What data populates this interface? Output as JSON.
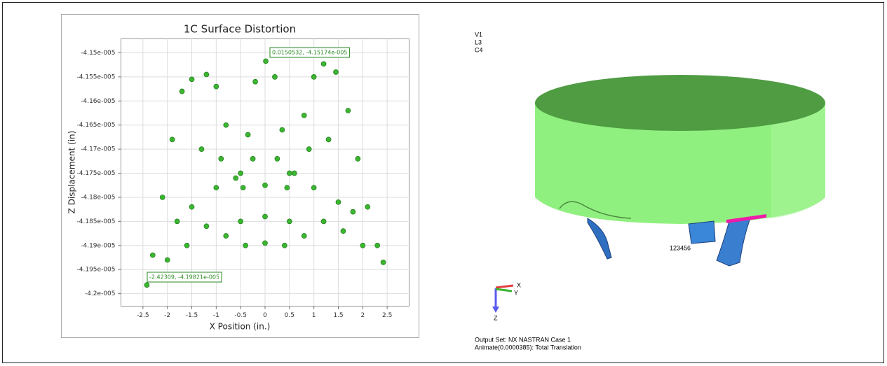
{
  "chart_data": {
    "type": "scatter",
    "title": "1C Surface Distortion",
    "x_label": "X Position (in.)",
    "y_label": "Z Displacement (in)",
    "color": "#3cb531",
    "grid": true,
    "x": [
      -2.42,
      -2.3,
      -2.1,
      -1.9,
      -1.7,
      -1.5,
      -1.2,
      -1.0,
      -0.8,
      -0.6,
      -0.45,
      -0.35,
      -0.2,
      0.015,
      0.2,
      0.35,
      0.45,
      0.6,
      0.8,
      1.0,
      1.2,
      1.45,
      1.7,
      1.9,
      2.1,
      2.3,
      2.42,
      -2.0,
      -1.6,
      -1.2,
      -0.8,
      -0.4,
      0,
      0.4,
      0.8,
      1.2,
      1.6,
      2.0,
      -1.0,
      -0.5,
      0,
      0.5,
      1.0,
      -1.5,
      1.5,
      0,
      -0.5,
      0.5,
      -1.8,
      -1.3,
      -0.9,
      0.9,
      1.3,
      1.8,
      -0.25,
      0.25
    ],
    "y": [
      -4.19821e-05,
      -4.192e-05,
      -4.18e-05,
      -4.168e-05,
      -4.158e-05,
      -4.1555e-05,
      -4.1545e-05,
      -4.157e-05,
      -4.165e-05,
      -4.176e-05,
      -4.178e-05,
      -4.167e-05,
      -4.156e-05,
      -4.15174e-05,
      -4.155e-05,
      -4.166e-05,
      -4.178e-05,
      -4.175e-05,
      -4.163e-05,
      -4.155e-05,
      -4.1523e-05,
      -4.154e-05,
      -4.162e-05,
      -4.172e-05,
      -4.182e-05,
      -4.19e-05,
      -4.1935e-05,
      -4.193e-05,
      -4.19e-05,
      -4.186e-05,
      -4.188e-05,
      -4.19e-05,
      -4.1895e-05,
      -4.19e-05,
      -4.188e-05,
      -4.185e-05,
      -4.187e-05,
      -4.19e-05,
      -4.178e-05,
      -4.175e-05,
      -4.1775e-05,
      -4.175e-05,
      -4.178e-05,
      -4.182e-05,
      -4.181e-05,
      -4.184e-05,
      -4.185e-05,
      -4.185e-05,
      -4.185e-05,
      -4.17e-05,
      -4.172e-05,
      -4.17e-05,
      -4.168e-05,
      -4.183e-05,
      -4.172e-05,
      -4.172e-05
    ],
    "xlim": [
      -2.95,
      2.95
    ],
    "ylim": [
      -4.2026e-05,
      -4.1471e-05
    ],
    "xticks": [
      -2.5,
      -2,
      -1.5,
      -1,
      -0.5,
      0,
      0.5,
      1,
      1.5,
      2,
      2.5
    ],
    "yticks": [
      {
        "value": -4.15e-05,
        "label": "-4.15e-005"
      },
      {
        "value": -4.155e-05,
        "label": "-4.155e-005"
      },
      {
        "value": -4.16e-05,
        "label": "-4.16e-005"
      },
      {
        "value": -4.165e-05,
        "label": "-4.165e-005"
      },
      {
        "value": -4.17e-05,
        "label": "-4.17e-005"
      },
      {
        "value": -4.175e-05,
        "label": "-4.175e-005"
      },
      {
        "value": -4.18e-05,
        "label": "-4.18e-005"
      },
      {
        "value": -4.185e-05,
        "label": "-4.185e-005"
      },
      {
        "value": -4.19e-05,
        "label": "-4.19e-005"
      },
      {
        "value": -4.195e-05,
        "label": "-4.195e-005"
      },
      {
        "value": -4.2e-05,
        "label": "-4.2e-005"
      }
    ],
    "annotations": [
      "0.0150532, -4.15174e-005",
      "-2.42309, -4.19821e-005"
    ]
  },
  "viewport": {
    "view_info": [
      "V1",
      "L3",
      "C4"
    ],
    "node_label": "123456",
    "axes": [
      "X",
      "Y",
      "Z"
    ],
    "output_set": "Output Set: NX NASTRAN Case 1",
    "animate": "Animate(0.0000385): Total Translation"
  }
}
